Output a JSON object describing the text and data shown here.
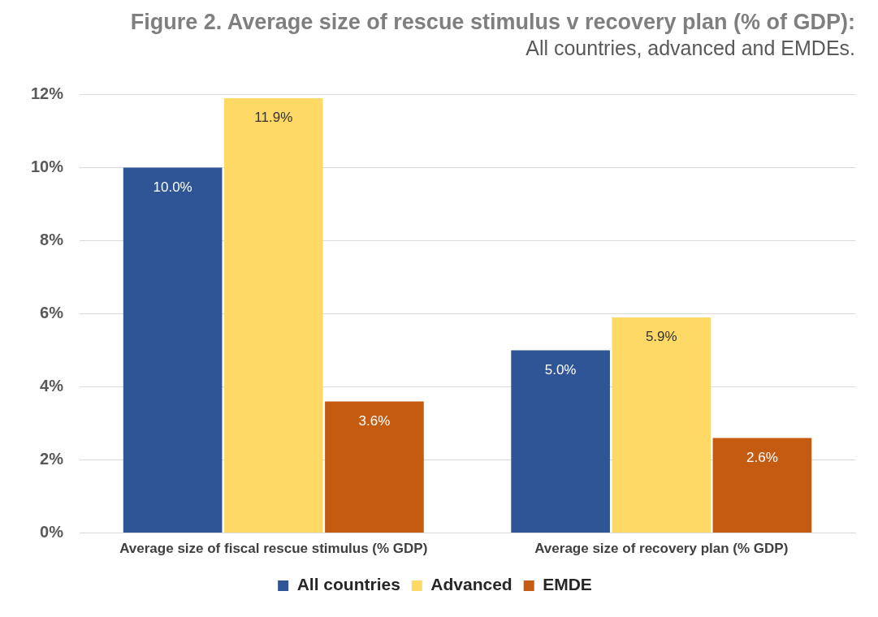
{
  "chart_data": {
    "type": "bar",
    "title": "Figure 2. Average size of rescue stimulus v recovery plan (% of GDP):",
    "subtitle": "All countries, advanced and EMDEs.",
    "categories": [
      "Average size of fiscal rescue stimulus (% GDP)",
      "Average size of recovery plan (% GDP)"
    ],
    "series": [
      {
        "name": "All countries",
        "color": "#2f5597",
        "values": [
          10.0,
          5.0
        ],
        "value_labels": [
          "10.0%",
          "5.0%"
        ]
      },
      {
        "name": "Advanced",
        "color": "#ffd966",
        "values": [
          11.9,
          5.9
        ],
        "value_labels": [
          "11.9%",
          "5.9%"
        ]
      },
      {
        "name": "EMDE",
        "color": "#c55a11",
        "values": [
          3.6,
          2.6
        ],
        "value_labels": [
          "3.6%",
          "2.6%"
        ]
      }
    ],
    "ylim": [
      0,
      12
    ],
    "yticks": [
      {
        "value": 0,
        "label": "0%"
      },
      {
        "value": 2,
        "label": "2%"
      },
      {
        "value": 4,
        "label": "4%"
      },
      {
        "value": 6,
        "label": "6%"
      },
      {
        "value": 8,
        "label": "8%"
      },
      {
        "value": 10,
        "label": "10%"
      },
      {
        "value": 12,
        "label": "12%"
      }
    ],
    "grid": "y",
    "legend": "bottom"
  }
}
